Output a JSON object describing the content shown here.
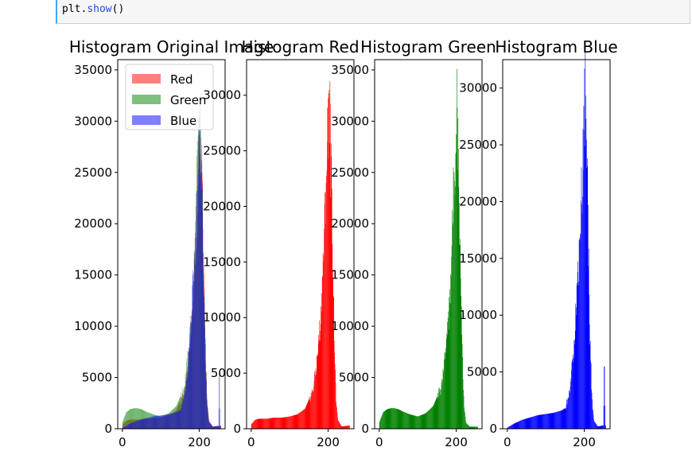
{
  "code": {
    "obj": "plt",
    "dot": ".",
    "fn": "show",
    "parens": "()"
  },
  "colors": {
    "red": "#ff0000",
    "green": "#008000",
    "blue": "#0000ff",
    "legend_red": "#ff7f7f",
    "legend_green": "#7fbf7f",
    "legend_blue": "#7f7fff"
  },
  "chart_data": [
    {
      "type": "histogram",
      "title": "Histogram Original Image",
      "xticks": [
        0,
        200
      ],
      "yticks": [
        0,
        5000,
        10000,
        15000,
        20000,
        25000,
        30000,
        35000
      ],
      "ylim": [
        0,
        36000
      ],
      "xlim": [
        -12,
        267
      ],
      "legend": {
        "placement": "upper-left",
        "entries": [
          "Red",
          "Green",
          "Blue"
        ]
      },
      "series": [
        {
          "name": "Red",
          "color": "red",
          "alpha": 0.5,
          "points": [
            [
              0,
              400
            ],
            [
              10,
              800
            ],
            [
              20,
              900
            ],
            [
              40,
              900
            ],
            [
              60,
              1000
            ],
            [
              80,
              1000
            ],
            [
              100,
              1100
            ],
            [
              120,
              1300
            ],
            [
              140,
              1800
            ],
            [
              160,
              3500
            ],
            [
              170,
              6000
            ],
            [
              180,
              10000
            ],
            [
              185,
              14000
            ],
            [
              190,
              18000
            ],
            [
              195,
              24000
            ],
            [
              200,
              29000
            ],
            [
              205,
              26000
            ],
            [
              210,
              20000
            ],
            [
              215,
              10000
            ],
            [
              220,
              3000
            ],
            [
              225,
              800
            ],
            [
              235,
              200
            ],
            [
              255,
              300
            ]
          ]
        },
        {
          "name": "Green",
          "color": "green",
          "alpha": 0.5,
          "points": [
            [
              0,
              600
            ],
            [
              10,
              1600
            ],
            [
              20,
              1900
            ],
            [
              30,
              2000
            ],
            [
              40,
              2000
            ],
            [
              50,
              1900
            ],
            [
              60,
              1700
            ],
            [
              80,
              1400
            ],
            [
              100,
              1200
            ],
            [
              120,
              1500
            ],
            [
              140,
              2200
            ],
            [
              160,
              4000
            ],
            [
              170,
              7000
            ],
            [
              180,
              11000
            ],
            [
              185,
              15000
            ],
            [
              190,
              20000
            ],
            [
              195,
              26000
            ],
            [
              200,
              31000
            ],
            [
              205,
              27000
            ],
            [
              210,
              19000
            ],
            [
              215,
              9000
            ],
            [
              220,
              2500
            ],
            [
              225,
              600
            ],
            [
              235,
              200
            ],
            [
              255,
              200
            ]
          ]
        },
        {
          "name": "Blue",
          "color": "blue",
          "alpha": 0.5,
          "points": [
            [
              0,
              100
            ],
            [
              10,
              300
            ],
            [
              20,
              500
            ],
            [
              40,
              800
            ],
            [
              60,
              1000
            ],
            [
              80,
              1200
            ],
            [
              100,
              1300
            ],
            [
              120,
              1400
            ],
            [
              140,
              1600
            ],
            [
              150,
              1800
            ],
            [
              160,
              3000
            ],
            [
              170,
              6000
            ],
            [
              175,
              9000
            ],
            [
              180,
              12000
            ],
            [
              185,
              15000
            ],
            [
              190,
              19000
            ],
            [
              195,
              23000
            ],
            [
              200,
              29000
            ],
            [
              203,
              30000
            ],
            [
              206,
              27000
            ],
            [
              210,
              18000
            ],
            [
              215,
              8000
            ],
            [
              220,
              2500
            ],
            [
              225,
              700
            ],
            [
              235,
              200
            ],
            [
              250,
              300
            ],
            [
              252,
              7000
            ],
            [
              254,
              300
            ]
          ]
        }
      ]
    },
    {
      "type": "histogram",
      "title": "Histogram Red",
      "xticks": [
        0,
        200
      ],
      "yticks": [
        0,
        5000,
        10000,
        15000,
        20000,
        25000,
        30000
      ],
      "ylim": [
        0,
        33200
      ],
      "xlim": [
        -12,
        267
      ],
      "series": [
        {
          "name": "",
          "color": "red",
          "alpha": 1,
          "points": [
            [
              0,
              400
            ],
            [
              10,
              800
            ],
            [
              20,
              900
            ],
            [
              40,
              900
            ],
            [
              60,
              1000
            ],
            [
              80,
              1000
            ],
            [
              100,
              1100
            ],
            [
              120,
              1300
            ],
            [
              140,
              1800
            ],
            [
              160,
              3500
            ],
            [
              170,
              6000
            ],
            [
              180,
              10000
            ],
            [
              185,
              14000
            ],
            [
              190,
              18000
            ],
            [
              195,
              24000
            ],
            [
              200,
              29000
            ],
            [
              203,
              31800
            ],
            [
              206,
              26000
            ],
            [
              210,
              20000
            ],
            [
              215,
              10000
            ],
            [
              220,
              3000
            ],
            [
              225,
              800
            ],
            [
              235,
              200
            ],
            [
              255,
              300
            ]
          ]
        }
      ]
    },
    {
      "type": "histogram",
      "title": "Histogram Green",
      "xticks": [
        0,
        200
      ],
      "yticks": [
        0,
        5000,
        10000,
        15000,
        20000,
        25000,
        30000,
        35000
      ],
      "ylim": [
        0,
        36000
      ],
      "xlim": [
        -12,
        267
      ],
      "series": [
        {
          "name": "",
          "color": "green",
          "alpha": 1,
          "points": [
            [
              0,
              600
            ],
            [
              10,
              1600
            ],
            [
              20,
              1900
            ],
            [
              30,
              2000
            ],
            [
              40,
              2000
            ],
            [
              50,
              1900
            ],
            [
              60,
              1700
            ],
            [
              80,
              1400
            ],
            [
              100,
              1200
            ],
            [
              120,
              1500
            ],
            [
              140,
              2200
            ],
            [
              160,
              4000
            ],
            [
              170,
              7000
            ],
            [
              180,
              11000
            ],
            [
              185,
              15000
            ],
            [
              190,
              20000
            ],
            [
              195,
              26000
            ],
            [
              200,
              31000
            ],
            [
              202,
              33800
            ],
            [
              205,
              27000
            ],
            [
              210,
              19000
            ],
            [
              215,
              9000
            ],
            [
              220,
              2500
            ],
            [
              225,
              600
            ],
            [
              235,
              200
            ],
            [
              255,
              200
            ]
          ]
        }
      ]
    },
    {
      "type": "histogram",
      "title": "Histogram Blue",
      "xticks": [
        0,
        200
      ],
      "yticks": [
        0,
        5000,
        10000,
        15000,
        20000,
        25000,
        30000
      ],
      "ylim": [
        0,
        32500
      ],
      "xlim": [
        -12,
        267
      ],
      "series": [
        {
          "name": "",
          "color": "blue",
          "alpha": 1,
          "points": [
            [
              0,
              100
            ],
            [
              10,
              300
            ],
            [
              20,
              500
            ],
            [
              40,
              800
            ],
            [
              60,
              1000
            ],
            [
              80,
              1200
            ],
            [
              100,
              1300
            ],
            [
              120,
              1400
            ],
            [
              140,
              1600
            ],
            [
              150,
              1800
            ],
            [
              160,
              3000
            ],
            [
              170,
              6000
            ],
            [
              175,
              9000
            ],
            [
              180,
              12000
            ],
            [
              185,
              15000
            ],
            [
              190,
              19000
            ],
            [
              195,
              23000
            ],
            [
              200,
              29000
            ],
            [
              203,
              31000
            ],
            [
              206,
              27000
            ],
            [
              210,
              18000
            ],
            [
              215,
              8000
            ],
            [
              220,
              2500
            ],
            [
              225,
              700
            ],
            [
              235,
              200
            ],
            [
              250,
              300
            ],
            [
              252,
              7200
            ],
            [
              254,
              300
            ]
          ]
        }
      ]
    }
  ]
}
